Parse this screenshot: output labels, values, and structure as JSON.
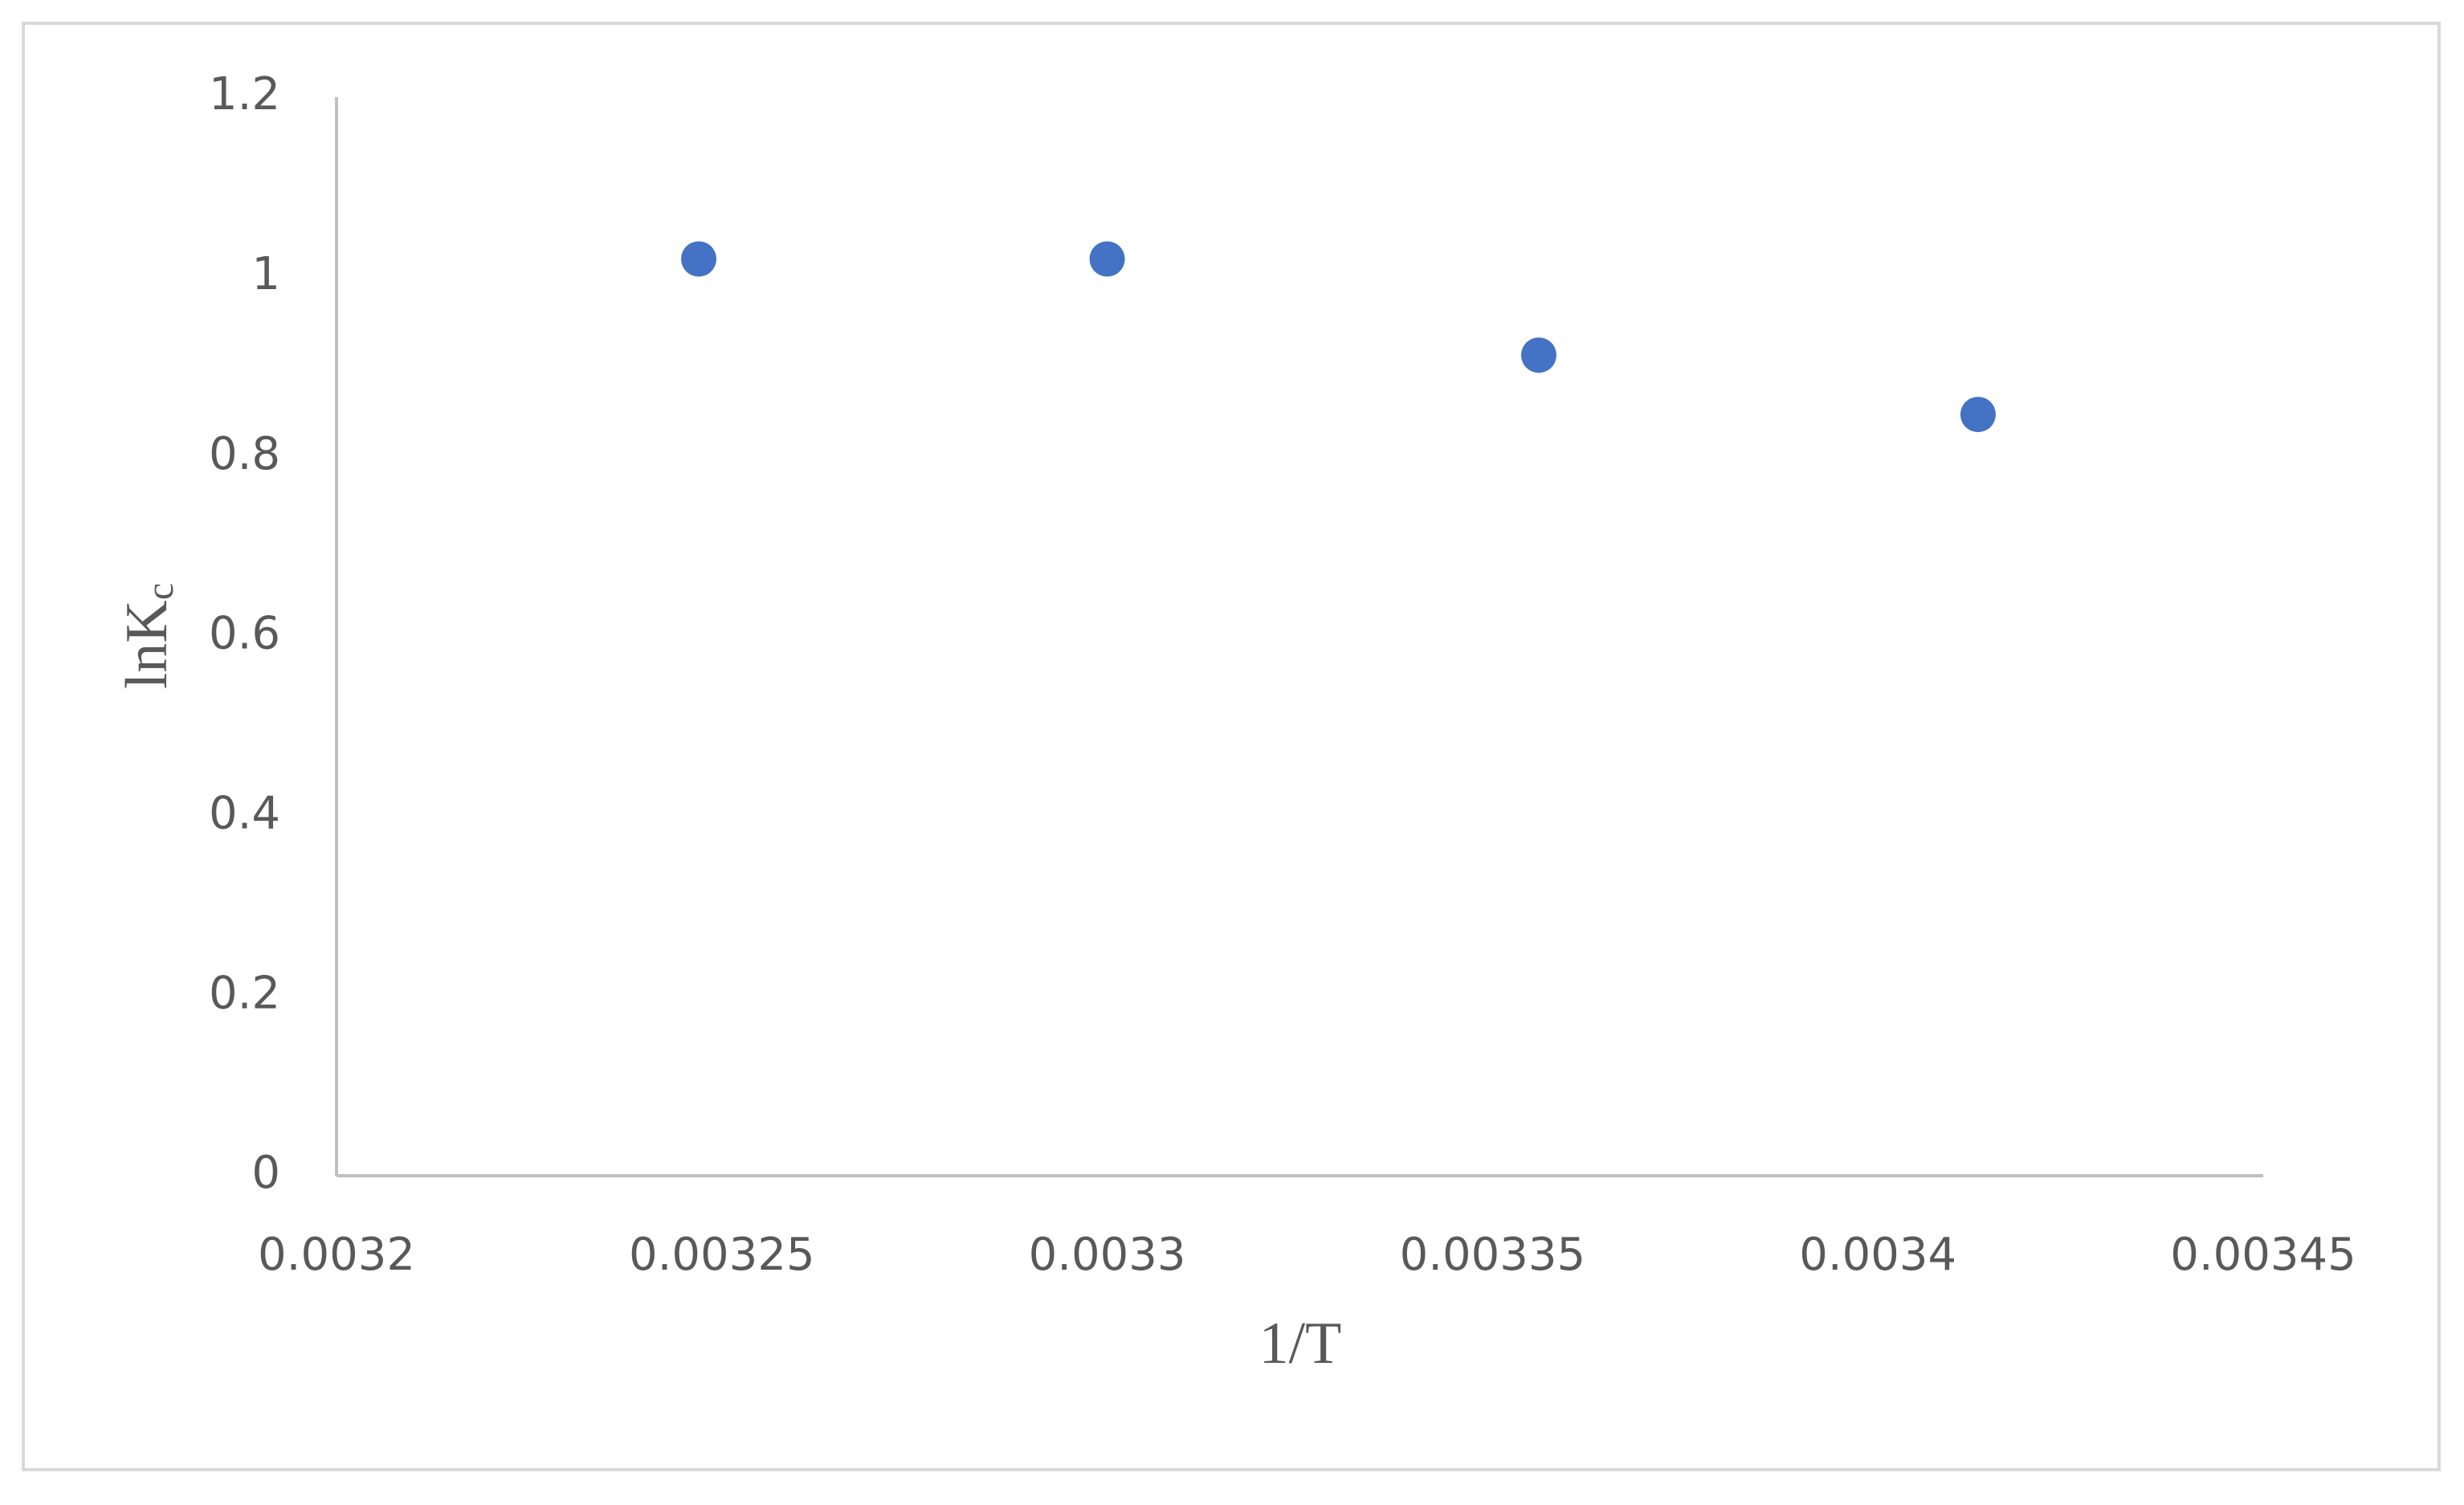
{
  "chart_data": {
    "type": "scatter",
    "x_label": "1/T",
    "y_label": {
      "text": "lnK",
      "subscript": "c"
    },
    "x": [
      0.003247,
      0.0033,
      0.003356,
      0.003413
    ],
    "series": [
      {
        "color": "#4472c4",
        "values": [
          1.02,
          1.02,
          0.913,
          0.847
        ]
      }
    ],
    "xlim": [
      0.0032,
      0.00345
    ],
    "xticks": [
      0.0032,
      0.00325,
      0.0033,
      0.00335,
      0.0034,
      0.00345
    ],
    "ylim": [
      0,
      1.2
    ],
    "yticks": [
      0,
      0.2,
      0.4,
      0.6,
      0.8,
      1,
      1.2
    ],
    "grid": false
  }
}
